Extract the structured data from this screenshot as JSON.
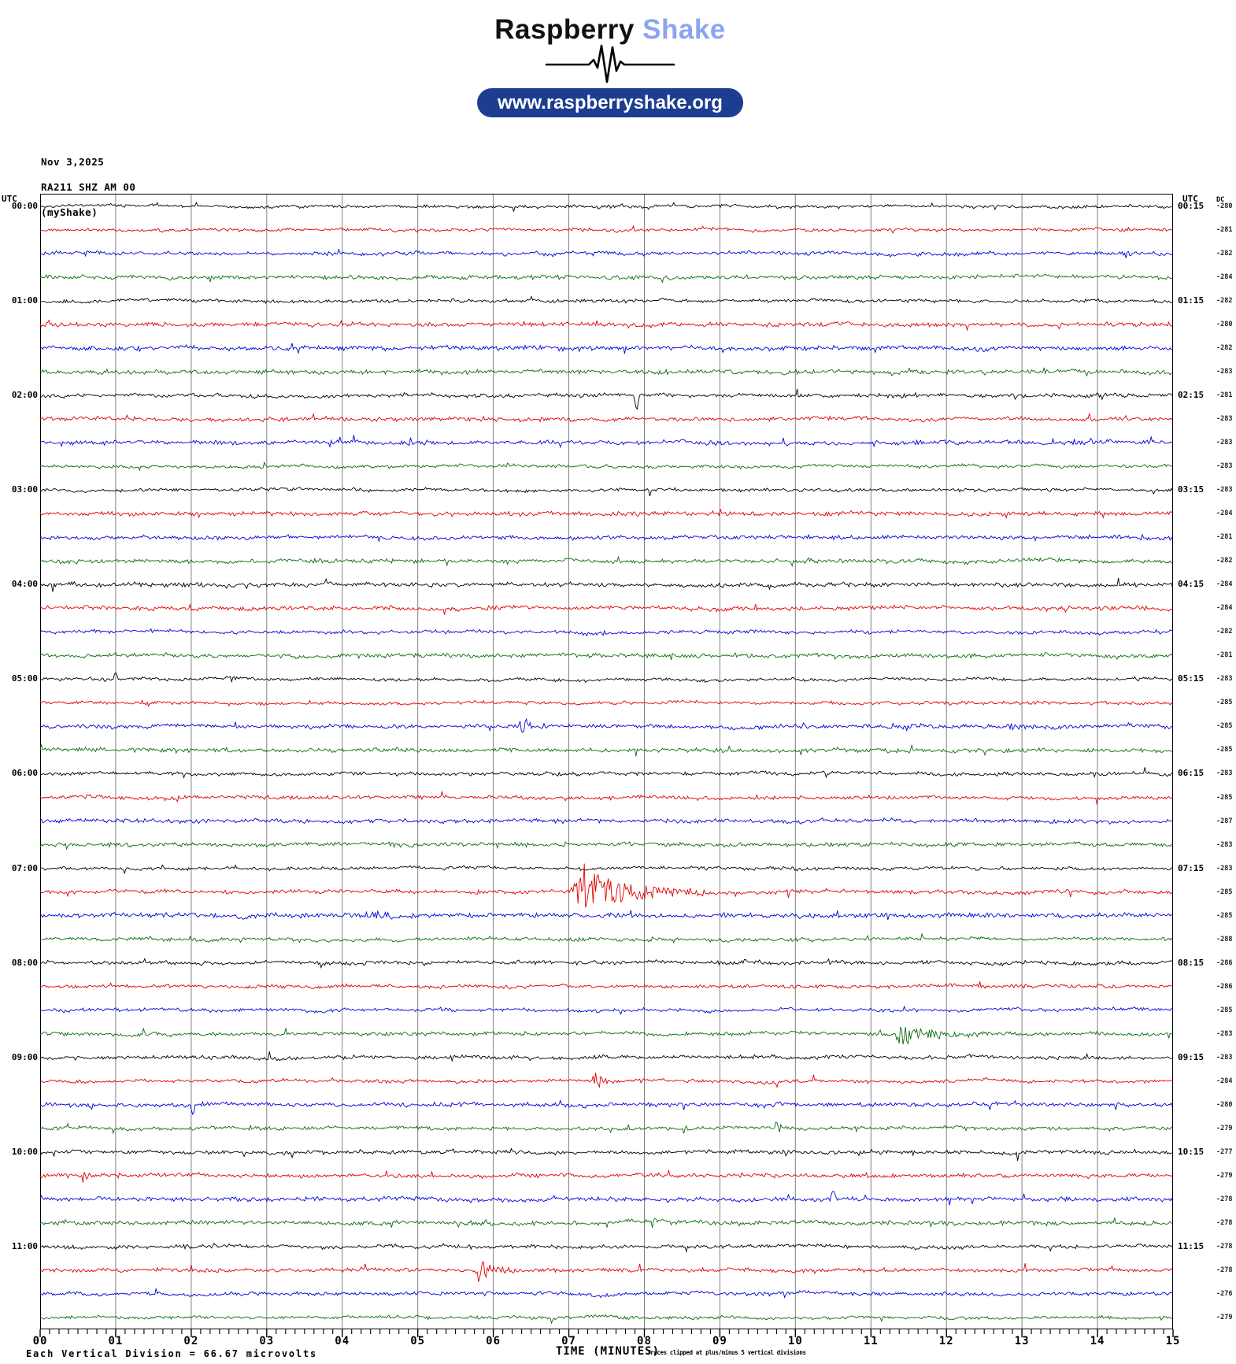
{
  "brand": {
    "word_black": "Raspberry",
    "word_blue": "Shake",
    "word_blue_color": "#8ca5f0",
    "url_button": "www.raspberryshake.org",
    "pill_color": "#1d3d90"
  },
  "plot_header": {
    "date": "Nov 3,2025",
    "station": "RA211 SHZ AM 00",
    "network": "(myShake)"
  },
  "labels": {
    "utc_left": "UTC",
    "utc_right": "UTC",
    "dc": "DC",
    "time_axis": "TIME (MINUTES)",
    "scale_note": "Each Vertical Division =   66.67 microvolts",
    "clip_note": "Traces clipped at plus/minus 5 vertical divisions"
  },
  "chart_data": {
    "type": "line",
    "subtype": "helicorder-seismogram",
    "title": "RA211 SHZ AM 00 (myShake) Nov 3,2025",
    "x_axis": {
      "label": "TIME (MINUTES)",
      "min": 0,
      "max": 15,
      "tick_labels": [
        "00",
        "01",
        "02",
        "03",
        "04",
        "05",
        "06",
        "07",
        "08",
        "09",
        "10",
        "11",
        "12",
        "13",
        "14",
        "15"
      ],
      "minor_divisions_per_minute": 8
    },
    "trace_color_cycle": [
      "#000000",
      "#e00000",
      "#0000dc",
      "#0a6e0a"
    ],
    "grid_color": "#808080",
    "border_color": "#000000",
    "minutes_per_row": 15,
    "rows": [
      {
        "utc_left": "00:00",
        "utc_right": "00:15",
        "dc": -280
      },
      {
        "dc": -281
      },
      {
        "dc": -282
      },
      {
        "dc": -284
      },
      {
        "utc_left": "01:00",
        "utc_right": "01:15",
        "dc": -282
      },
      {
        "dc": -280
      },
      {
        "dc": -282
      },
      {
        "dc": -283
      },
      {
        "utc_left": "02:00",
        "utc_right": "02:15",
        "dc": -281
      },
      {
        "dc": -283
      },
      {
        "dc": -283
      },
      {
        "dc": -283
      },
      {
        "utc_left": "03:00",
        "utc_right": "03:15",
        "dc": -283
      },
      {
        "dc": -284
      },
      {
        "dc": -281
      },
      {
        "dc": -282
      },
      {
        "utc_left": "04:00",
        "utc_right": "04:15",
        "dc": -284
      },
      {
        "dc": -284
      },
      {
        "dc": -282
      },
      {
        "dc": -281
      },
      {
        "utc_left": "05:00",
        "utc_right": "05:15",
        "dc": -283
      },
      {
        "dc": -285
      },
      {
        "dc": -285
      },
      {
        "dc": -285
      },
      {
        "utc_left": "06:00",
        "utc_right": "06:15",
        "dc": -283
      },
      {
        "dc": -285
      },
      {
        "dc": -287
      },
      {
        "dc": -283
      },
      {
        "utc_left": "07:00",
        "utc_right": "07:15",
        "dc": -283
      },
      {
        "dc": -285
      },
      {
        "dc": -285
      },
      {
        "dc": -288
      },
      {
        "utc_left": "08:00",
        "utc_right": "08:15",
        "dc": -286
      },
      {
        "dc": -286
      },
      {
        "dc": -285
      },
      {
        "dc": -283
      },
      {
        "utc_left": "09:00",
        "utc_right": "09:15",
        "dc": -283
      },
      {
        "dc": -284
      },
      {
        "dc": -280
      },
      {
        "dc": -279
      },
      {
        "utc_left": "10:00",
        "utc_right": "10:15",
        "dc": -277
      },
      {
        "dc": -279
      },
      {
        "dc": -278
      },
      {
        "dc": -278
      },
      {
        "utc_left": "11:00",
        "utc_right": "11:15",
        "dc": -278
      },
      {
        "dc": -278
      },
      {
        "dc": -276
      },
      {
        "dc": -279
      }
    ],
    "events": [
      {
        "row": 8,
        "shape": "spike",
        "min": 7.9,
        "amp": 22,
        "dir": -1
      },
      {
        "row": 20,
        "shape": "spike",
        "min": 1.0,
        "amp": 9,
        "dir": 1
      },
      {
        "row": 22,
        "shape": "burst",
        "start": 6.3,
        "end": 6.75,
        "amp": 11
      },
      {
        "row": 22,
        "shape": "burst",
        "start": 11.2,
        "end": 12.4,
        "amp": 5
      },
      {
        "row": 22,
        "shape": "burst",
        "start": 12.8,
        "end": 13.35,
        "amp": 5
      },
      {
        "row": 23,
        "shape": "burst",
        "start": 2.4,
        "end": 2.65,
        "amp": 8
      },
      {
        "row": 29,
        "shape": "burst",
        "start": 7.02,
        "end": 8.8,
        "amp": 30
      },
      {
        "row": 30,
        "shape": "burst",
        "start": 4.3,
        "end": 5.1,
        "amp": 7
      },
      {
        "row": 35,
        "shape": "burst",
        "start": 11.3,
        "end": 12.45,
        "amp": 17
      },
      {
        "row": 37,
        "shape": "burst",
        "start": 7.3,
        "end": 7.65,
        "amp": 11
      },
      {
        "row": 38,
        "shape": "spike",
        "min": 2.02,
        "amp": 13,
        "dir": -1
      },
      {
        "row": 39,
        "shape": "burst",
        "start": 9.7,
        "end": 10.0,
        "amp": 10
      },
      {
        "row": 41,
        "shape": "burst",
        "start": 0.55,
        "end": 0.8,
        "amp": 8
      },
      {
        "row": 42,
        "shape": "spike",
        "min": 10.5,
        "amp": 15,
        "dir": 1
      },
      {
        "row": 45,
        "shape": "burst",
        "start": 5.72,
        "end": 6.35,
        "amp": 20
      }
    ]
  }
}
